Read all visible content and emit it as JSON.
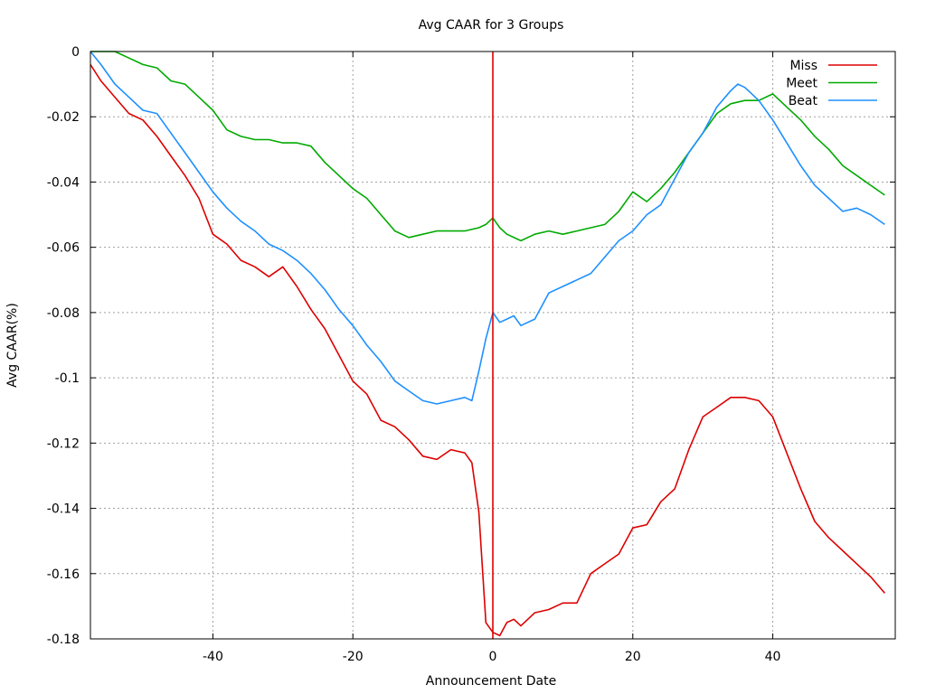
{
  "chart_data": {
    "type": "line",
    "title": "Avg CAAR for 3 Groups",
    "xlabel": "Announcement Date",
    "ylabel": "Avg CAAR(%)",
    "xlim": [
      -57.5,
      57.5
    ],
    "ylim": [
      -0.18,
      0
    ],
    "xticks": [
      -40,
      -20,
      0,
      20,
      40
    ],
    "xtick_labels": [
      "-40",
      "-20",
      "0",
      "20",
      "40"
    ],
    "yticks": [
      0,
      -0.02,
      -0.04,
      -0.06,
      -0.08,
      -0.1,
      -0.12,
      -0.14,
      -0.16,
      -0.18
    ],
    "ytick_labels": [
      "0",
      "-0.02",
      "-0.04",
      "-0.06",
      "-0.08",
      "-0.1",
      "-0.12",
      "-0.14",
      "-0.16",
      "-0.18"
    ],
    "grid": true,
    "legend_position": "top-right",
    "vertical_line": {
      "x": 0,
      "color": "#dd0000"
    },
    "series": [
      {
        "name": "Miss",
        "color": "#dd0000",
        "x": [
          -57.5,
          -56,
          -54,
          -52,
          -50,
          -48,
          -46,
          -44,
          -42,
          -40,
          -38,
          -36,
          -34,
          -32,
          -30,
          -28,
          -26,
          -24,
          -22,
          -20,
          -18,
          -16,
          -14,
          -12,
          -10,
          -8,
          -6,
          -4,
          -3,
          -2,
          -1,
          0,
          1,
          2,
          3,
          4,
          6,
          8,
          10,
          12,
          14,
          16,
          18,
          19,
          20,
          22,
          24,
          26,
          28,
          30,
          32,
          34,
          36,
          38,
          40,
          42,
          44,
          46,
          48,
          50,
          52,
          54,
          56
        ],
        "values": [
          -0.004,
          -0.009,
          -0.014,
          -0.019,
          -0.021,
          -0.026,
          -0.032,
          -0.038,
          -0.045,
          -0.056,
          -0.059,
          -0.064,
          -0.066,
          -0.069,
          -0.066,
          -0.072,
          -0.079,
          -0.085,
          -0.093,
          -0.101,
          -0.105,
          -0.113,
          -0.115,
          -0.119,
          -0.124,
          -0.125,
          -0.122,
          -0.123,
          -0.126,
          -0.141,
          -0.175,
          -0.178,
          -0.179,
          -0.175,
          -0.174,
          -0.176,
          -0.172,
          -0.171,
          -0.169,
          -0.169,
          -0.16,
          -0.157,
          -0.154,
          -0.15,
          -0.146,
          -0.145,
          -0.138,
          -0.134,
          -0.122,
          -0.112,
          -0.109,
          -0.106,
          -0.106,
          -0.107,
          -0.112,
          -0.123,
          -0.134,
          -0.144,
          -0.149,
          -0.153,
          -0.157,
          -0.161,
          -0.166
        ]
      },
      {
        "name": "Meet",
        "color": "#00aa00",
        "x": [
          -57.5,
          -56,
          -54,
          -52,
          -50,
          -48,
          -46,
          -44,
          -42,
          -40,
          -38,
          -36,
          -34,
          -32,
          -30,
          -28,
          -26,
          -24,
          -22,
          -20,
          -18,
          -16,
          -14,
          -12,
          -10,
          -8,
          -6,
          -4,
          -2,
          -1,
          0,
          1,
          2,
          4,
          6,
          8,
          10,
          12,
          14,
          16,
          18,
          20,
          22,
          24,
          26,
          28,
          30,
          32,
          34,
          36,
          38,
          40,
          42,
          44,
          46,
          48,
          50,
          52,
          54,
          56
        ],
        "values": [
          0,
          0,
          0,
          -0.002,
          -0.004,
          -0.005,
          -0.009,
          -0.01,
          -0.014,
          -0.018,
          -0.024,
          -0.026,
          -0.027,
          -0.027,
          -0.028,
          -0.028,
          -0.029,
          -0.034,
          -0.038,
          -0.042,
          -0.045,
          -0.05,
          -0.055,
          -0.057,
          -0.056,
          -0.055,
          -0.055,
          -0.055,
          -0.054,
          -0.053,
          -0.051,
          -0.054,
          -0.056,
          -0.058,
          -0.056,
          -0.055,
          -0.056,
          -0.055,
          -0.054,
          -0.053,
          -0.049,
          -0.043,
          -0.046,
          -0.042,
          -0.037,
          -0.031,
          -0.025,
          -0.019,
          -0.016,
          -0.015,
          -0.015,
          -0.013,
          -0.017,
          -0.021,
          -0.026,
          -0.03,
          -0.035,
          -0.038,
          -0.041,
          -0.044
        ]
      },
      {
        "name": "Beat",
        "color": "#1e90ff",
        "x": [
          -57.5,
          -56,
          -54,
          -52,
          -50,
          -48,
          -46,
          -44,
          -42,
          -40,
          -38,
          -36,
          -34,
          -32,
          -30,
          -28,
          -26,
          -24,
          -22,
          -20,
          -18,
          -16,
          -14,
          -12,
          -10,
          -8,
          -6,
          -4,
          -3,
          -2,
          -1,
          0,
          1,
          2,
          3,
          4,
          6,
          8,
          10,
          12,
          14,
          16,
          18,
          20,
          22,
          24,
          26,
          28,
          30,
          32,
          34,
          35,
          36,
          38,
          40,
          42,
          44,
          46,
          48,
          50,
          52,
          54,
          56
        ],
        "values": [
          0,
          -0.004,
          -0.01,
          -0.014,
          -0.018,
          -0.019,
          -0.025,
          -0.031,
          -0.037,
          -0.043,
          -0.048,
          -0.052,
          -0.055,
          -0.059,
          -0.061,
          -0.064,
          -0.068,
          -0.073,
          -0.079,
          -0.084,
          -0.09,
          -0.095,
          -0.101,
          -0.104,
          -0.107,
          -0.108,
          -0.107,
          -0.106,
          -0.107,
          -0.098,
          -0.088,
          -0.08,
          -0.083,
          -0.082,
          -0.081,
          -0.084,
          -0.082,
          -0.074,
          -0.072,
          -0.07,
          -0.068,
          -0.063,
          -0.058,
          -0.055,
          -0.05,
          -0.047,
          -0.039,
          -0.031,
          -0.025,
          -0.017,
          -0.012,
          -0.01,
          -0.011,
          -0.015,
          -0.021,
          -0.028,
          -0.035,
          -0.041,
          -0.045,
          -0.049,
          -0.048,
          -0.05,
          -0.053
        ]
      }
    ]
  }
}
